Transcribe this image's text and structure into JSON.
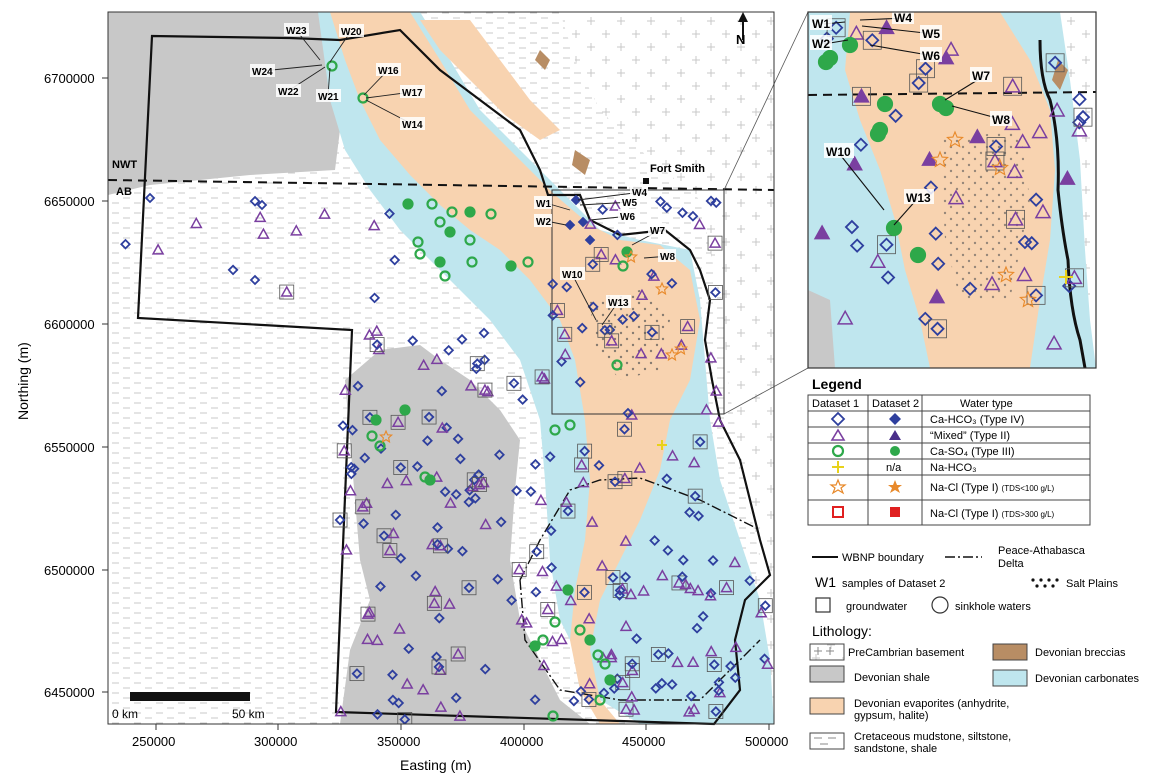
{
  "axes": {
    "x_label": "Easting (m)",
    "y_label": "Northing (m)",
    "x_ticks": [
      "250000",
      "300000",
      "350000",
      "400000",
      "450000",
      "500000"
    ],
    "y_ticks": [
      "6700000",
      "6650000",
      "6600000",
      "6550000",
      "6500000",
      "6450000"
    ]
  },
  "map_labels": {
    "nwt": "NWT",
    "ab": "AB",
    "fort_smith": "Fort Smith",
    "north": "N",
    "scale_start": "0 km",
    "scale_end": "50 km"
  },
  "well_labels": [
    "W1",
    "W2",
    "W4",
    "W5",
    "W6",
    "W7",
    "W8",
    "W10",
    "W13",
    "W14",
    "W16",
    "W17",
    "W20",
    "W21",
    "W22",
    "W23",
    "W24"
  ],
  "inset_labels": [
    "W1",
    "W2",
    "W4",
    "W5",
    "W6",
    "W7",
    "W8",
    "W10",
    "W13"
  ],
  "legend": {
    "title": "Legend",
    "col1": "Dataset 1",
    "col2": "Dataset 2",
    "col3": "Water type",
    "rows": [
      {
        "type": "Ca-HCO₃ (Type IV)",
        "d2": ""
      },
      {
        "type": "“Mixed” (Type II)",
        "d2": ""
      },
      {
        "type": "Ca-SO₄ (Type III)",
        "d2": ""
      },
      {
        "type": "Na-HCO₃",
        "d2": "n/a"
      },
      {
        "type": "Na-Cl (Type I)",
        "note": "(TDS<100 g/L)",
        "d2": ""
      },
      {
        "type": "Na-Cl (Type I)",
        "note": "(TDS>300 g/L)",
        "d2": ""
      }
    ],
    "wbnp": "WBNP boundary",
    "pad_line1": "Peace-Athabasca",
    "pad_line2": "Delta",
    "w1": "W1",
    "w1_desc": "samples of Dataset 2",
    "salt_plains": "Salt Plains",
    "groundwater": "groundwater",
    "sinkhole": "sinkhole waters",
    "lithology_title": "Lithology:",
    "precambrian": "PreCambrian basement",
    "breccias": "Devonian breccias",
    "shale": "Devonian shale",
    "carbonates": "Devonian carbonates",
    "evap1": "Devonian evaporites (anhydrite,",
    "evap2": "gypsum, halite)",
    "cret1": "Cretaceous mudstone, siltstone,",
    "cret2": "sandstone, shale"
  },
  "colors": {
    "ca_hco3": "#2e3f9e",
    "mixed": "#7a3fa0",
    "ca_so4": "#2ea84a",
    "na_hco3": "#e8d21a",
    "na_cl": "#e8892a",
    "na_cl_high": "#e02020",
    "evaporites": "#f8d3b0",
    "carbonates": "#bfe6ee",
    "shale": "#c8c8c8",
    "breccias": "#b88d64"
  }
}
